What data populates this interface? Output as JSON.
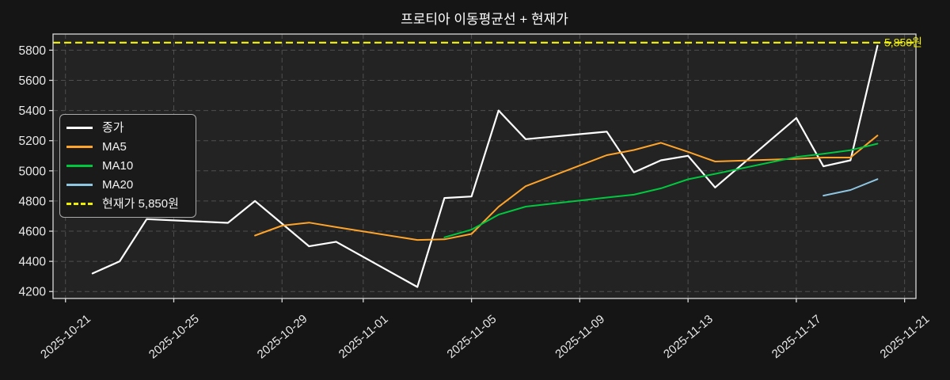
{
  "title": "프로티아 이동평균선 + 현재가",
  "current_price": {
    "value": 5850,
    "display": "5,850원",
    "legend_label": "현재가 5,850원"
  },
  "colors": {
    "figure_bg": "#151515",
    "plot_bg": "#232323",
    "grid": "#7a7a7a",
    "spine": "#d9d9d9",
    "tick_text": "#e9e9e9",
    "title_text": "#ffffff",
    "close": "#ffffff",
    "ma5": "#ffa42a",
    "ma10": "#00c83e",
    "ma20": "#8ec6e2",
    "current": "#eded00",
    "legend_border": "#ababab",
    "legend_bg": "#1a1a1a"
  },
  "legend": {
    "items": [
      {
        "key": "close",
        "label": "종가",
        "color": "#ffffff",
        "style": "solid"
      },
      {
        "key": "ma5",
        "label": "MA5",
        "color": "#ffa42a",
        "style": "solid"
      },
      {
        "key": "ma10",
        "label": "MA10",
        "color": "#00c83e",
        "style": "solid"
      },
      {
        "key": "ma20",
        "label": "MA20",
        "color": "#8ec6e2",
        "style": "solid"
      },
      {
        "key": "current",
        "label": "현재가 5,850원",
        "color": "#eded00",
        "style": "dashed"
      }
    ]
  },
  "chart_data": {
    "type": "line",
    "title": "프로티아 이동평균선 + 현재가",
    "xlabel": "",
    "ylabel": "",
    "grid": true,
    "legend_position": "upper left",
    "x_axis": {
      "kind": "date",
      "tick_labels": [
        "2025-10-21",
        "2025-10-25",
        "2025-10-29",
        "2025-11-01",
        "2025-11-05",
        "2025-11-09",
        "2025-11-13",
        "2025-11-17",
        "2025-11-21"
      ],
      "label_rotation_deg": 40
    },
    "y_axis": {
      "ticks": [
        4200,
        4400,
        4600,
        4800,
        5000,
        5200,
        5400,
        5600,
        5800
      ],
      "range": [
        4154,
        5907
      ]
    },
    "series": [
      {
        "name": "종가",
        "key": "close",
        "color": "#ffffff",
        "dates": [
          "2025-10-22",
          "2025-10-23",
          "2025-10-24",
          "2025-10-27",
          "2025-10-28",
          "2025-10-29",
          "2025-10-30",
          "2025-10-31",
          "2025-11-03",
          "2025-11-04",
          "2025-11-05",
          "2025-11-06",
          "2025-11-07",
          "2025-11-10",
          "2025-11-11",
          "2025-11-12",
          "2025-11-13",
          "2025-11-14",
          "2025-11-17",
          "2025-11-18",
          "2025-11-19",
          "2025-11-20"
        ],
        "values": [
          4320,
          4400,
          4680,
          4655,
          4800,
          4650,
          4500,
          4530,
          4230,
          4820,
          4830,
          5400,
          5210,
          5260,
          4990,
          5070,
          5100,
          4890,
          5350,
          5030,
          5070,
          5830
        ]
      },
      {
        "name": "MA5",
        "key": "ma5",
        "color": "#ffa42a",
        "dates": [
          "2025-10-28",
          "2025-10-29",
          "2025-10-30",
          "2025-10-31",
          "2025-11-03",
          "2025-11-04",
          "2025-11-05",
          "2025-11-06",
          "2025-11-07",
          "2025-11-10",
          "2025-11-11",
          "2025-11-12",
          "2025-11-13",
          "2025-11-14",
          "2025-11-17",
          "2025-11-18",
          "2025-11-19",
          "2025-11-20"
        ],
        "values": [
          4571,
          4637,
          4657,
          4627,
          4542,
          4546,
          4582,
          4762,
          4898,
          5104,
          5138,
          5186,
          5126,
          5062,
          5080,
          5088,
          5088,
          5234
        ]
      },
      {
        "name": "MA10",
        "key": "ma10",
        "color": "#00c83e",
        "dates": [
          "2025-11-04",
          "2025-11-05",
          "2025-11-06",
          "2025-11-07",
          "2025-11-10",
          "2025-11-11",
          "2025-11-12",
          "2025-11-13",
          "2025-11-14",
          "2025-11-17",
          "2025-11-18",
          "2025-11-19",
          "2025-11-20"
        ],
        "values": [
          4559,
          4610,
          4710,
          4763,
          4823,
          4842,
          4884,
          4944,
          4980,
          5092,
          5113,
          5137,
          5180
        ]
      },
      {
        "name": "MA20",
        "key": "ma20",
        "color": "#8ec6e2",
        "dates": [
          "2025-11-18",
          "2025-11-19",
          "2025-11-20"
        ],
        "values": [
          4836,
          4873,
          4945
        ]
      }
    ],
    "hline": {
      "name": "현재가",
      "value": 5850,
      "label": "5,850원",
      "color": "#eded00",
      "style": "dashed"
    }
  }
}
